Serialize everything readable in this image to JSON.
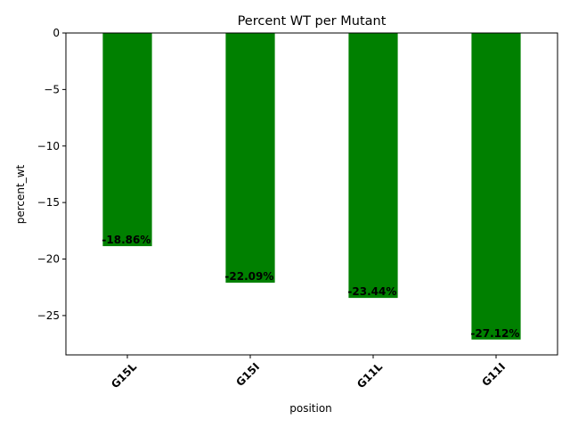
{
  "chart_data": {
    "type": "bar",
    "title": "Percent WT per Mutant",
    "xlabel": "position",
    "ylabel": "percent_wt",
    "categories": [
      "G15L",
      "G15I",
      "G11L",
      "G11I"
    ],
    "values": [
      -18.86,
      -22.09,
      -23.44,
      -27.12
    ],
    "data_labels": [
      "-18.86%",
      "-22.09%",
      "-23.44%",
      "-27.12%"
    ],
    "yticks": [
      0,
      -5,
      -10,
      -15,
      -20,
      -25
    ],
    "ylim": [
      -28.48,
      0
    ],
    "bar_color": "#008000",
    "grid": false,
    "legend": "none"
  }
}
